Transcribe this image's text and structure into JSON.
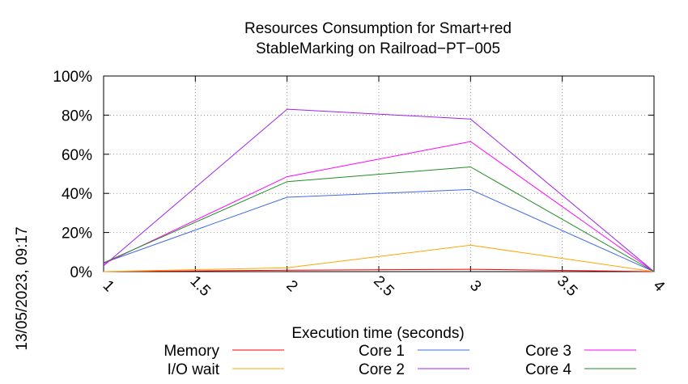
{
  "side_label": "13/05/2023, 09:17",
  "chart_data": {
    "type": "line",
    "title_lines": [
      "Resources Consumption for Smart+red",
      "StableMarking on Railroad−PT−005"
    ],
    "xlabel": "Execution time (seconds)",
    "ylabel": "",
    "xlim": [
      1,
      4
    ],
    "ylim": [
      0,
      100
    ],
    "x_ticks": [
      "1",
      "1.5",
      "2",
      "2.5",
      "3",
      "3.5",
      "4"
    ],
    "x_tick_values": [
      1,
      1.5,
      2,
      2.5,
      3,
      3.5,
      4
    ],
    "y_ticks": [
      "0%",
      "20%",
      "40%",
      "60%",
      "80%",
      "100%"
    ],
    "y_tick_values": [
      0,
      20,
      40,
      60,
      80,
      100
    ],
    "grid": true,
    "legend_position": "bottom",
    "x": [
      1,
      2,
      3,
      4
    ],
    "series": [
      {
        "name": "Memory",
        "color": "#ff0000",
        "values": [
          0,
          0.7,
          1.2,
          0
        ]
      },
      {
        "name": "I/O wait",
        "color": "#ffa500",
        "values": [
          0,
          2,
          13.5,
          0
        ]
      },
      {
        "name": "Core 1",
        "color": "#4169e1",
        "values": [
          4.5,
          38,
          42,
          0
        ]
      },
      {
        "name": "Core 2",
        "color": "#a020f0",
        "values": [
          3,
          83,
          78,
          0
        ]
      },
      {
        "name": "Core 3",
        "color": "#ff00ff",
        "values": [
          4,
          48.5,
          66.5,
          0
        ]
      },
      {
        "name": "Core 4",
        "color": "#228b22",
        "values": [
          4.5,
          46,
          53.5,
          0
        ]
      }
    ]
  }
}
